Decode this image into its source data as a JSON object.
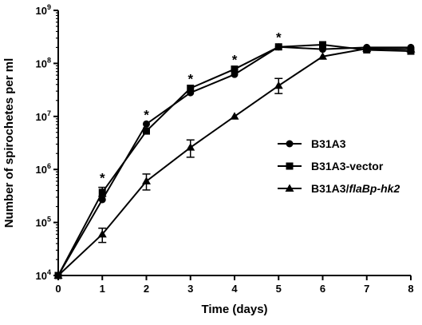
{
  "chart_data": {
    "type": "line",
    "xlabel": "Time (days)",
    "ylabel": "Number of spirochetes per ml",
    "y_scale": "log",
    "xlim": [
      0,
      8
    ],
    "ylim": [
      10000,
      1000000000
    ],
    "x_ticks": [
      0,
      1,
      2,
      3,
      4,
      5,
      6,
      7,
      8
    ],
    "y_ticks": [
      {
        "value": 10000,
        "base": "10",
        "exp": "4"
      },
      {
        "value": 100000,
        "base": "10",
        "exp": "5"
      },
      {
        "value": 1000000,
        "base": "10",
        "exp": "6"
      },
      {
        "value": 10000000,
        "base": "10",
        "exp": "7"
      },
      {
        "value": 100000000,
        "base": "10",
        "exp": "8"
      },
      {
        "value": 1000000000,
        "base": "10",
        "exp": "9"
      }
    ],
    "x": [
      0,
      1,
      2,
      3,
      4,
      5,
      6,
      7,
      8
    ],
    "series": [
      {
        "name": "B31A3",
        "marker": "circle",
        "values": [
          10000,
          270000,
          7200000,
          28000000,
          62000000,
          205000000,
          185000000,
          200000000,
          200000000
        ]
      },
      {
        "name": "B31A3-vector",
        "marker": "square",
        "values": [
          10000,
          370000,
          5300000,
          34000000,
          78000000,
          205000000,
          225000000,
          180000000,
          170000000
        ],
        "error": [
          null,
          [
            310000,
            460000
          ],
          null,
          null,
          null,
          null,
          null,
          null,
          null
        ]
      },
      {
        "name": "B31A3/flaBp-hk2",
        "name_plain": "B31A3/",
        "name_italic": "flaBp-hk2",
        "marker": "triangle",
        "values": [
          10000,
          60000,
          600000,
          2600000,
          10000000,
          38000000,
          135000000,
          190000000,
          185000000
        ],
        "error": [
          null,
          [
            42000,
            78000
          ],
          [
            410000,
            820000
          ],
          [
            1700000,
            3600000
          ],
          null,
          [
            27000000,
            52000000
          ],
          null,
          null,
          null
        ]
      }
    ],
    "significance": [
      {
        "x": 1,
        "label": "*"
      },
      {
        "x": 2,
        "label": "*"
      },
      {
        "x": 3,
        "label": "*"
      },
      {
        "x": 4,
        "label": "*"
      },
      {
        "x": 5,
        "label": "*"
      }
    ],
    "legend_position": "right-middle"
  }
}
